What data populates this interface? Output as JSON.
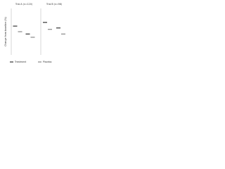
{
  "chart_data": [
    {
      "type": "dot",
      "title": "Trial A (n=120)",
      "y_label": "Change from baseline (%)",
      "categories": [
        null,
        null
      ],
      "series": [
        {
          "name": "Treatment",
          "color": "#333333",
          "values": [
            62,
            45
          ]
        },
        {
          "name": "Placebo",
          "color": "#888888",
          "values": [
            50,
            38
          ]
        }
      ],
      "ylim": [
        0,
        100
      ]
    },
    {
      "type": "dot",
      "title": "Trial B (n=98)",
      "categories": [
        null,
        null
      ],
      "series": [
        {
          "color": "#333333",
          "values": [
            70,
            58
          ]
        },
        {
          "color": "#888888",
          "values": [
            55,
            45
          ]
        }
      ],
      "ylim": [
        0,
        100
      ]
    }
  ]
}
